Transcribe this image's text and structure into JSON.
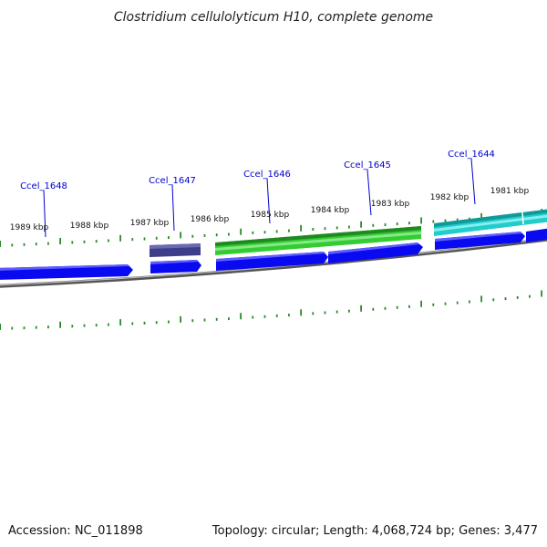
{
  "title": "Clostridium cellulolyticum H10, complete genome",
  "footer": {
    "accession": "Accession: NC_011898",
    "summary": "Topology: circular; Length: 4,068,724 bp; Genes: 3,477"
  },
  "colors": {
    "backbone": "#888888",
    "cds_reverse": "#0a0af0",
    "gene_green": "#33cc33",
    "gene_cyan": "#22cccc",
    "gene_purple": "#3d3d8a",
    "tick": "#2b8a2b",
    "gene_label": "#0000cc"
  },
  "scale_ticks": [
    {
      "label": "1989 kbp"
    },
    {
      "label": "1988 kbp"
    },
    {
      "label": "1987 kbp"
    },
    {
      "label": "1986 kbp"
    },
    {
      "label": "1985 kbp"
    },
    {
      "label": "1984 kbp"
    },
    {
      "label": "1983 kbp"
    },
    {
      "label": "1982 kbp"
    },
    {
      "label": "1981 kbp"
    }
  ],
  "genes": [
    {
      "label": "Ccel_1648"
    },
    {
      "label": "Ccel_1647"
    },
    {
      "label": "Ccel_1646"
    },
    {
      "label": "Ccel_1645"
    },
    {
      "label": "Ccel_1644"
    }
  ]
}
